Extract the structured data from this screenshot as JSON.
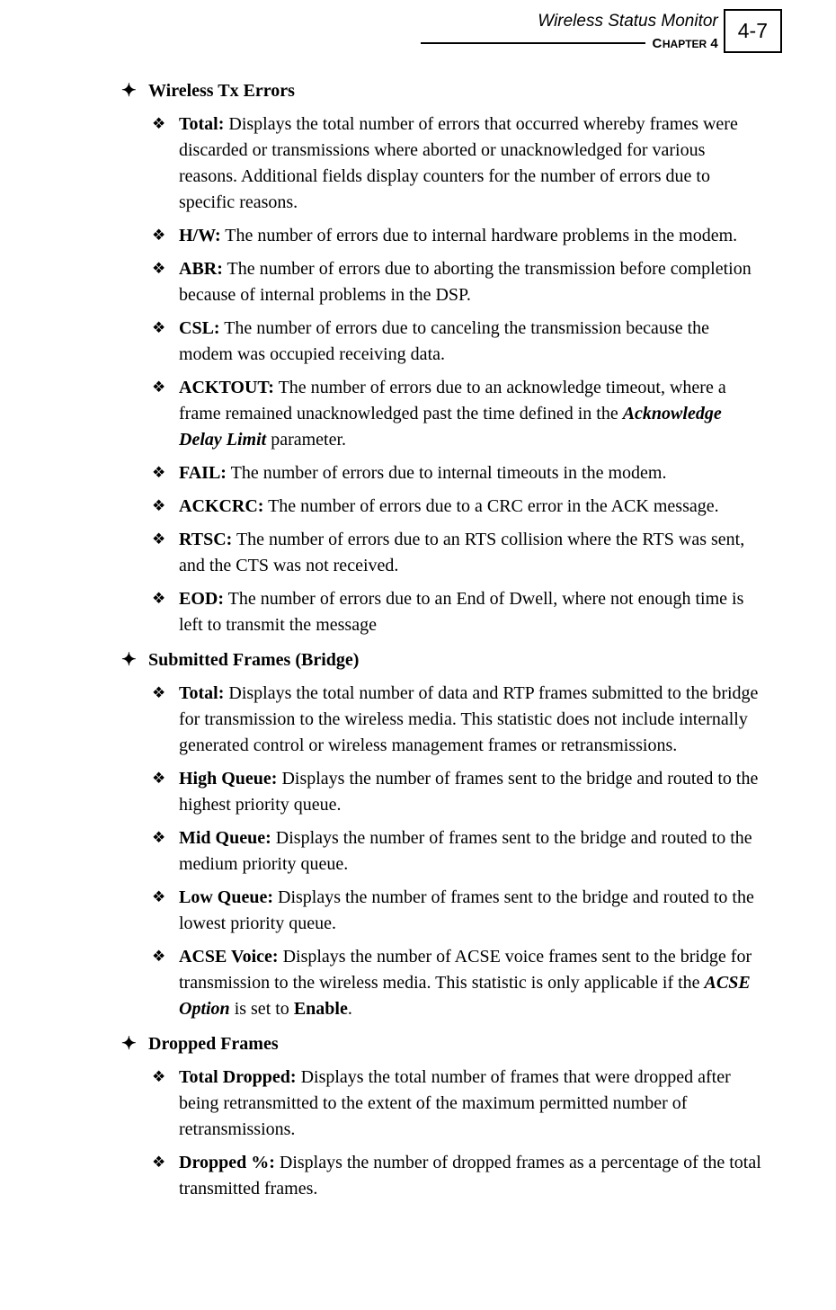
{
  "header": {
    "title": "Wireless Status Monitor",
    "chapter_label_caps": "C",
    "chapter_label_small": "HAPTER",
    "chapter_num": " 4",
    "page_number": "4-7"
  },
  "sections": [
    {
      "title": "Wireless Tx Errors",
      "items": [
        {
          "term": "Total:",
          "text": " Displays the total number of errors that occurred whereby frames were discarded or transmissions where aborted or unacknowledged for various reasons. Additional fields display counters for the number of errors due to specific reasons."
        },
        {
          "term": "H/W:",
          "text": " The number of errors due to internal hardware problems in the modem."
        },
        {
          "term": "ABR:",
          "text": " The number of errors due to aborting the transmission before completion because of internal problems in the DSP."
        },
        {
          "term": "CSL:",
          "text": " The number of errors due to canceling the transmission because the modem was occupied receiving data."
        },
        {
          "term": "ACKTOUT:",
          "text_pre": " The number of errors due to an acknowledge timeout, where a frame remained unacknowledged past the time defined in the ",
          "emph": "Acknowledge Delay Limit",
          "text_post": " parameter."
        },
        {
          "term": "FAIL:",
          "text": " The number of errors due to internal timeouts in the modem."
        },
        {
          "term": "ACKCRC:",
          "text": " The number of errors due to a CRC error in the ACK message."
        },
        {
          "term": "RTSC:",
          "text": " The number of errors due to an RTS collision where the RTS was sent, and the CTS was not received."
        },
        {
          "term": "EOD:",
          "text": " The number of errors due to an End of Dwell, where not enough time is left to transmit the message"
        }
      ]
    },
    {
      "title": "Submitted Frames (Bridge)",
      "items": [
        {
          "term": "Total:",
          "text": " Displays the total number of data and RTP frames submitted to the bridge for transmission to the wireless media. This statistic does not include internally generated control or wireless management frames or retransmissions."
        },
        {
          "term": "High Queue:",
          "text": " Displays the number of frames sent to the bridge and routed to the highest priority queue."
        },
        {
          "term": "Mid Queue:",
          "text": " Displays the number of frames sent to the bridge and routed to the medium priority queue."
        },
        {
          "term": "Low Queue:",
          "text": " Displays the number of frames sent to the bridge and routed to the lowest priority queue."
        },
        {
          "term": "ACSE Voice:",
          "text_pre": " Displays the number of ACSE voice frames sent to the bridge for transmission to the wireless media. This statistic is only applicable if the ",
          "emph": "ACSE Option",
          "text_mid": " is set to ",
          "bold": "Enable",
          "text_post": "."
        }
      ]
    },
    {
      "title": "Dropped Frames",
      "items": [
        {
          "term": "Total Dropped:",
          "text": " Displays the total number of frames that were dropped after being retransmitted to the extent of the maximum permitted number of retransmissions."
        },
        {
          "term": "Dropped %:",
          "text": " Displays the number of dropped frames as a percentage of the total transmitted frames."
        }
      ]
    }
  ],
  "bullets": {
    "star": "✦",
    "diamond": "❖"
  }
}
